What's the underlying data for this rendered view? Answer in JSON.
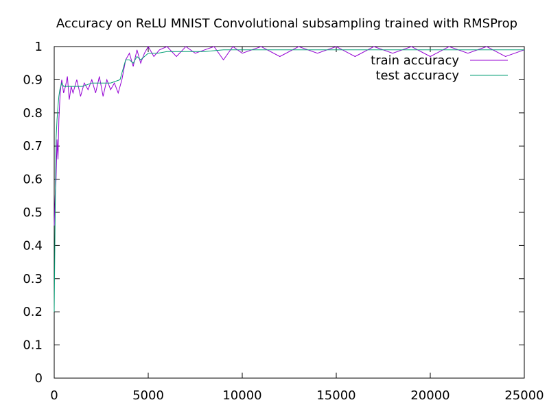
{
  "chart_data": {
    "type": "line",
    "title": "Accuracy on ReLU MNIST Convolutional subsampling trained with RMSProp",
    "xlabel": "",
    "ylabel": "",
    "xlim": [
      0,
      25000
    ],
    "ylim": [
      0,
      1
    ],
    "x_ticks": [
      0,
      5000,
      10000,
      15000,
      20000,
      25000
    ],
    "y_ticks": [
      0,
      0.1,
      0.2,
      0.3,
      0.4,
      0.5,
      0.6,
      0.7,
      0.8,
      0.9,
      1
    ],
    "x_tick_labels": [
      "0",
      "5000",
      "10000",
      "15000",
      "20000",
      "25000"
    ],
    "y_tick_labels": [
      "0",
      "0.1",
      "0.2",
      "0.3",
      "0.4",
      "0.5",
      "0.6",
      "0.7",
      "0.8",
      "0.9",
      "1"
    ],
    "grid": false,
    "legend_position": "top-right",
    "series": [
      {
        "name": "train accuracy",
        "color": "#9400d3",
        "x": [
          0,
          50,
          100,
          150,
          200,
          250,
          300,
          350,
          400,
          500,
          600,
          700,
          800,
          900,
          1000,
          1200,
          1400,
          1600,
          1800,
          2000,
          2200,
          2400,
          2600,
          2800,
          3000,
          3200,
          3400,
          3600,
          3800,
          4000,
          4200,
          4400,
          4600,
          4800,
          5000,
          5300,
          5600,
          6000,
          6500,
          7000,
          7500,
          8000,
          8500,
          9000,
          9500,
          10000,
          11000,
          12000,
          13000,
          14000,
          15000,
          16000,
          17000,
          18000,
          19000,
          20000,
          21000,
          22000,
          23000,
          24000,
          25000
        ],
        "y": [
          0.46,
          0.55,
          0.6,
          0.72,
          0.66,
          0.78,
          0.84,
          0.88,
          0.9,
          0.86,
          0.88,
          0.91,
          0.84,
          0.88,
          0.86,
          0.9,
          0.85,
          0.89,
          0.87,
          0.9,
          0.86,
          0.91,
          0.85,
          0.9,
          0.87,
          0.89,
          0.86,
          0.9,
          0.96,
          0.98,
          0.94,
          0.99,
          0.95,
          0.98,
          1.0,
          0.97,
          0.99,
          1.0,
          0.97,
          1.0,
          0.98,
          0.99,
          1.0,
          0.96,
          1.0,
          0.98,
          1.0,
          0.97,
          1.0,
          0.98,
          1.0,
          0.97,
          1.0,
          0.98,
          1.0,
          0.97,
          1.0,
          0.98,
          1.0,
          0.97,
          0.99
        ]
      },
      {
        "name": "test accuracy",
        "color": "#009e73",
        "x": [
          0,
          50,
          100,
          150,
          200,
          250,
          300,
          350,
          400,
          500,
          700,
          1000,
          1500,
          2000,
          2500,
          3000,
          3500,
          3800,
          4000,
          4200,
          4400,
          4600,
          4800,
          5000,
          5500,
          6000,
          7000,
          8000,
          9000,
          10000,
          12000,
          14000,
          16000,
          18000,
          20000,
          22000,
          24000,
          25000
        ],
        "y": [
          0.2,
          0.5,
          0.72,
          0.78,
          0.82,
          0.85,
          0.87,
          0.88,
          0.89,
          0.88,
          0.88,
          0.88,
          0.88,
          0.89,
          0.89,
          0.89,
          0.9,
          0.96,
          0.96,
          0.95,
          0.97,
          0.96,
          0.97,
          0.98,
          0.98,
          0.985,
          0.985,
          0.985,
          0.99,
          0.99,
          0.99,
          0.99,
          0.99,
          0.99,
          0.99,
          0.99,
          0.99,
          0.99
        ]
      }
    ]
  }
}
